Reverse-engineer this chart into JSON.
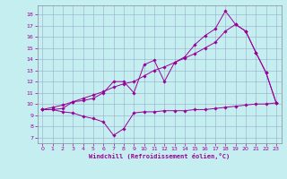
{
  "xlabel": "Windchill (Refroidissement éolien,°C)",
  "background_color": "#c5eef0",
  "grid_color": "#99aacc",
  "line_color": "#990099",
  "xlim": [
    -0.5,
    23.5
  ],
  "ylim": [
    6.5,
    18.8
  ],
  "xticks": [
    0,
    1,
    2,
    3,
    4,
    5,
    6,
    7,
    8,
    9,
    10,
    11,
    12,
    13,
    14,
    15,
    16,
    17,
    18,
    19,
    20,
    21,
    22,
    23
  ],
  "yticks": [
    7,
    8,
    9,
    10,
    11,
    12,
    13,
    14,
    15,
    16,
    17,
    18
  ],
  "line1_x": [
    0,
    1,
    2,
    3,
    4,
    5,
    6,
    7,
    8,
    9,
    10,
    11,
    12,
    13,
    14,
    15,
    16,
    17,
    18,
    19,
    20,
    21,
    22,
    23
  ],
  "line1_y": [
    9.5,
    9.5,
    9.3,
    9.2,
    8.9,
    8.7,
    8.4,
    7.2,
    7.8,
    9.2,
    9.3,
    9.3,
    9.4,
    9.4,
    9.4,
    9.5,
    9.5,
    9.6,
    9.7,
    9.8,
    9.9,
    10.0,
    10.0,
    10.1
  ],
  "line2_x": [
    0,
    1,
    2,
    3,
    4,
    5,
    6,
    7,
    8,
    9,
    10,
    11,
    12,
    13,
    14,
    15,
    16,
    17,
    18,
    19,
    20,
    21,
    22,
    23
  ],
  "line2_y": [
    9.5,
    9.5,
    9.6,
    10.2,
    10.3,
    10.5,
    11.0,
    12.0,
    12.0,
    11.0,
    13.5,
    13.9,
    12.0,
    13.7,
    14.2,
    15.3,
    16.1,
    16.7,
    18.3,
    17.1,
    16.5,
    14.6,
    12.8,
    10.1
  ],
  "line3_x": [
    0,
    1,
    2,
    3,
    4,
    5,
    6,
    7,
    8,
    9,
    10,
    11,
    12,
    13,
    14,
    15,
    16,
    17,
    18,
    19,
    20,
    21,
    22,
    23
  ],
  "line3_y": [
    9.5,
    9.7,
    9.9,
    10.2,
    10.5,
    10.8,
    11.1,
    11.5,
    11.8,
    12.0,
    12.5,
    13.0,
    13.3,
    13.7,
    14.1,
    14.5,
    15.0,
    15.5,
    16.5,
    17.1,
    16.5,
    14.6,
    12.8,
    10.1
  ]
}
